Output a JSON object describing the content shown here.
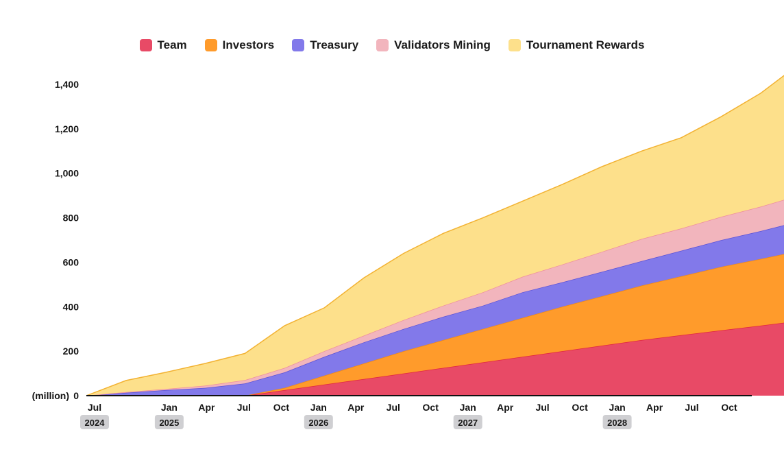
{
  "chart_data": {
    "type": "area",
    "stacked": true,
    "unit_label": "(million)",
    "x": [
      "2024-07",
      "2024-10",
      "2025-01",
      "2025-04",
      "2025-07",
      "2025-10",
      "2026-01",
      "2026-04",
      "2026-07",
      "2026-10",
      "2027-01",
      "2027-04",
      "2027-07",
      "2027-10",
      "2028-01",
      "2028-04",
      "2028-07",
      "2028-10",
      "2028-12"
    ],
    "series": [
      {
        "name": "Team",
        "color": "#e84a66",
        "values": [
          0,
          0,
          0,
          0,
          0,
          25,
          50,
          75,
          100,
          125,
          150,
          175,
          200,
          225,
          250,
          272,
          294,
          315,
          330
        ]
      },
      {
        "name": "Investors",
        "color": "#ff9b2b",
        "values": [
          0,
          0,
          0,
          0,
          0,
          10,
          40,
          70,
          100,
          125,
          150,
          175,
          200,
          222,
          245,
          265,
          285,
          300,
          310
        ]
      },
      {
        "name": "Treasury",
        "color": "#8279ea",
        "values": [
          0,
          13,
          25,
          35,
          55,
          70,
          85,
          95,
          100,
          105,
          105,
          115,
          110,
          110,
          110,
          115,
          120,
          125,
          130
        ]
      },
      {
        "name": "Validators Mining",
        "color": "#f2b5bd",
        "values": [
          0,
          3,
          5,
          10,
          15,
          20,
          25,
          30,
          40,
          50,
          60,
          70,
          80,
          90,
          100,
          100,
          105,
          110,
          115
        ]
      },
      {
        "name": "Tournament Rewards",
        "color": "#fde08b",
        "values": [
          0,
          52,
          75,
          100,
          120,
          190,
          195,
          260,
          300,
          325,
          335,
          340,
          360,
          383,
          395,
          408,
          450,
          510,
          565
        ]
      }
    ],
    "ylim": [
      0,
      1400
    ],
    "yticks": [
      0,
      200,
      400,
      600,
      800,
      1000,
      1200,
      1400
    ],
    "xtick_labels": [
      "Jul",
      "Jan",
      "Apr",
      "Jul",
      "Oct",
      "Jan",
      "Apr",
      "Jul",
      "Oct",
      "Jan",
      "Apr",
      "Jul",
      "Oct",
      "Jan",
      "Apr",
      "Jul",
      "Oct"
    ],
    "year_labels": [
      "2024",
      "2025",
      "2026",
      "2027",
      "2028"
    ],
    "legend_position": "top-center"
  }
}
